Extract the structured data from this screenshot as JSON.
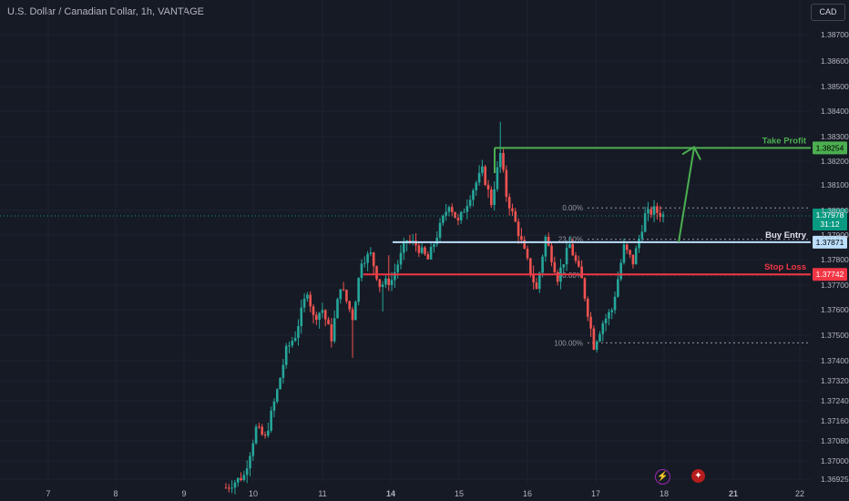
{
  "header": {
    "title": "U.S. Dollar / Canadian Dollar, 1h, VANTAGE",
    "currency": "CAD"
  },
  "colors": {
    "bull": "#26a69a",
    "bear": "#ef5350",
    "take_profit": "#4caf50",
    "entry": "#bbdefb",
    "stop": "#f23645",
    "current": "#089981"
  },
  "chart_data": {
    "type": "candlestick",
    "y_axis": {
      "ylim": [
        1.3687,
        1.3876
      ],
      "ticks": [
        "1.38700",
        "1.38600",
        "1.38500",
        "1.38400",
        "1.38300",
        "1.38200",
        "1.38100",
        "1.38000",
        "1.37900",
        "1.37800",
        "1.37700",
        "1.37600",
        "1.37500",
        "1.37400",
        "1.37320",
        "1.37240",
        "1.37160",
        "1.37080",
        "1.37000",
        "1.36925"
      ]
    },
    "x_axis": {
      "ticks": [
        {
          "label": "7",
          "bold": false
        },
        {
          "label": "8",
          "bold": false
        },
        {
          "label": "9",
          "bold": false
        },
        {
          "label": "10",
          "bold": false
        },
        {
          "label": "11",
          "bold": false
        },
        {
          "label": "14",
          "bold": true
        },
        {
          "label": "15",
          "bold": false
        },
        {
          "label": "16",
          "bold": false
        },
        {
          "label": "17",
          "bold": false
        },
        {
          "label": "18",
          "bold": false
        },
        {
          "label": "21",
          "bold": true
        },
        {
          "label": "22",
          "bold": false
        }
      ]
    },
    "levels": [
      {
        "name": "Take Profit",
        "price_label": "1.38254",
        "value": 1.38254
      },
      {
        "name": "Buy Entry",
        "price_label": "1.37871",
        "value": 1.37871
      },
      {
        "name": "Stop Loss",
        "price_label": "1.37742",
        "value": 1.37742
      }
    ],
    "current_price": {
      "label": "1.37978",
      "countdown": "31:12",
      "value": 1.37978
    },
    "fibonacci": {
      "high": 1.3801,
      "low": 1.3747,
      "labels": [
        "0.00%",
        "23.60%",
        "50.00%",
        "100.00%"
      ]
    },
    "waypoints": [
      [
        0,
        1.3689
      ],
      [
        6,
        1.3694
      ],
      [
        10,
        1.3713
      ],
      [
        13,
        1.3709
      ],
      [
        17,
        1.3728
      ],
      [
        20,
        1.3744
      ],
      [
        23,
        1.375
      ],
      [
        27,
        1.3768
      ],
      [
        29,
        1.3757
      ],
      [
        32,
        1.376
      ],
      [
        35,
        1.3749
      ],
      [
        38,
        1.377
      ],
      [
        42,
        1.3757
      ],
      [
        45,
        1.378
      ],
      [
        48,
        1.3782
      ],
      [
        51,
        1.377
      ],
      [
        55,
        1.3772
      ],
      [
        60,
        1.3788
      ],
      [
        63,
        1.3786
      ],
      [
        67,
        1.378
      ],
      [
        70,
        1.379
      ],
      [
        74,
        1.3803
      ],
      [
        77,
        1.3795
      ],
      [
        81,
        1.3806
      ],
      [
        85,
        1.3816
      ],
      [
        88,
        1.3803
      ],
      [
        91,
        1.3823
      ],
      [
        93,
        1.3806
      ],
      [
        96,
        1.3795
      ],
      [
        100,
        1.3779
      ],
      [
        103,
        1.3768
      ],
      [
        106,
        1.3789
      ],
      [
        110,
        1.3773
      ],
      [
        114,
        1.3786
      ],
      [
        118,
        1.3772
      ],
      [
        122,
        1.3746
      ],
      [
        125,
        1.3755
      ],
      [
        128,
        1.376
      ],
      [
        132,
        1.3785
      ],
      [
        135,
        1.3779
      ],
      [
        139,
        1.3798
      ],
      [
        142,
        1.38
      ],
      [
        145,
        1.3798
      ]
    ]
  }
}
